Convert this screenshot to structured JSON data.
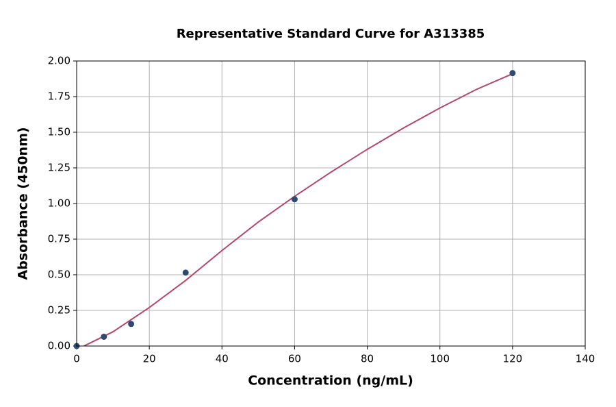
{
  "chart_data": {
    "type": "scatter",
    "title": "Representative Standard Curve for A313385",
    "x_label": "Concentration (ng/mL)",
    "y_label": "Absorbance (450nm)",
    "xlim": [
      0,
      140
    ],
    "ylim": [
      0,
      2
    ],
    "xticks": [
      0,
      20,
      40,
      60,
      80,
      100,
      120,
      140
    ],
    "yticks": [
      {
        "value": 0,
        "label": "0.00"
      },
      {
        "value": 0.25,
        "label": "0.25"
      },
      {
        "value": 0.5,
        "label": "0.50"
      },
      {
        "value": 0.75,
        "label": "0.75"
      },
      {
        "value": 1,
        "label": "1.00"
      },
      {
        "value": 1.25,
        "label": "1.25"
      },
      {
        "value": 1.5,
        "label": "1.50"
      },
      {
        "value": 1.75,
        "label": "1.75"
      },
      {
        "value": 2,
        "label": "2.00"
      }
    ],
    "grid": true,
    "points": {
      "color": "#2e4a72",
      "x": [
        0,
        7.5,
        15,
        30,
        60,
        120
      ],
      "y": [
        0,
        0.065,
        0.155,
        0.515,
        1.03,
        1.915
      ]
    },
    "curve": {
      "color": "#b5476b",
      "x": [
        2,
        10,
        20,
        30,
        40,
        50,
        60,
        70,
        80,
        90,
        100,
        110,
        120
      ],
      "y": [
        0,
        0.1,
        0.27,
        0.46,
        0.67,
        0.87,
        1.05,
        1.22,
        1.38,
        1.53,
        1.67,
        1.8,
        1.91
      ]
    }
  }
}
